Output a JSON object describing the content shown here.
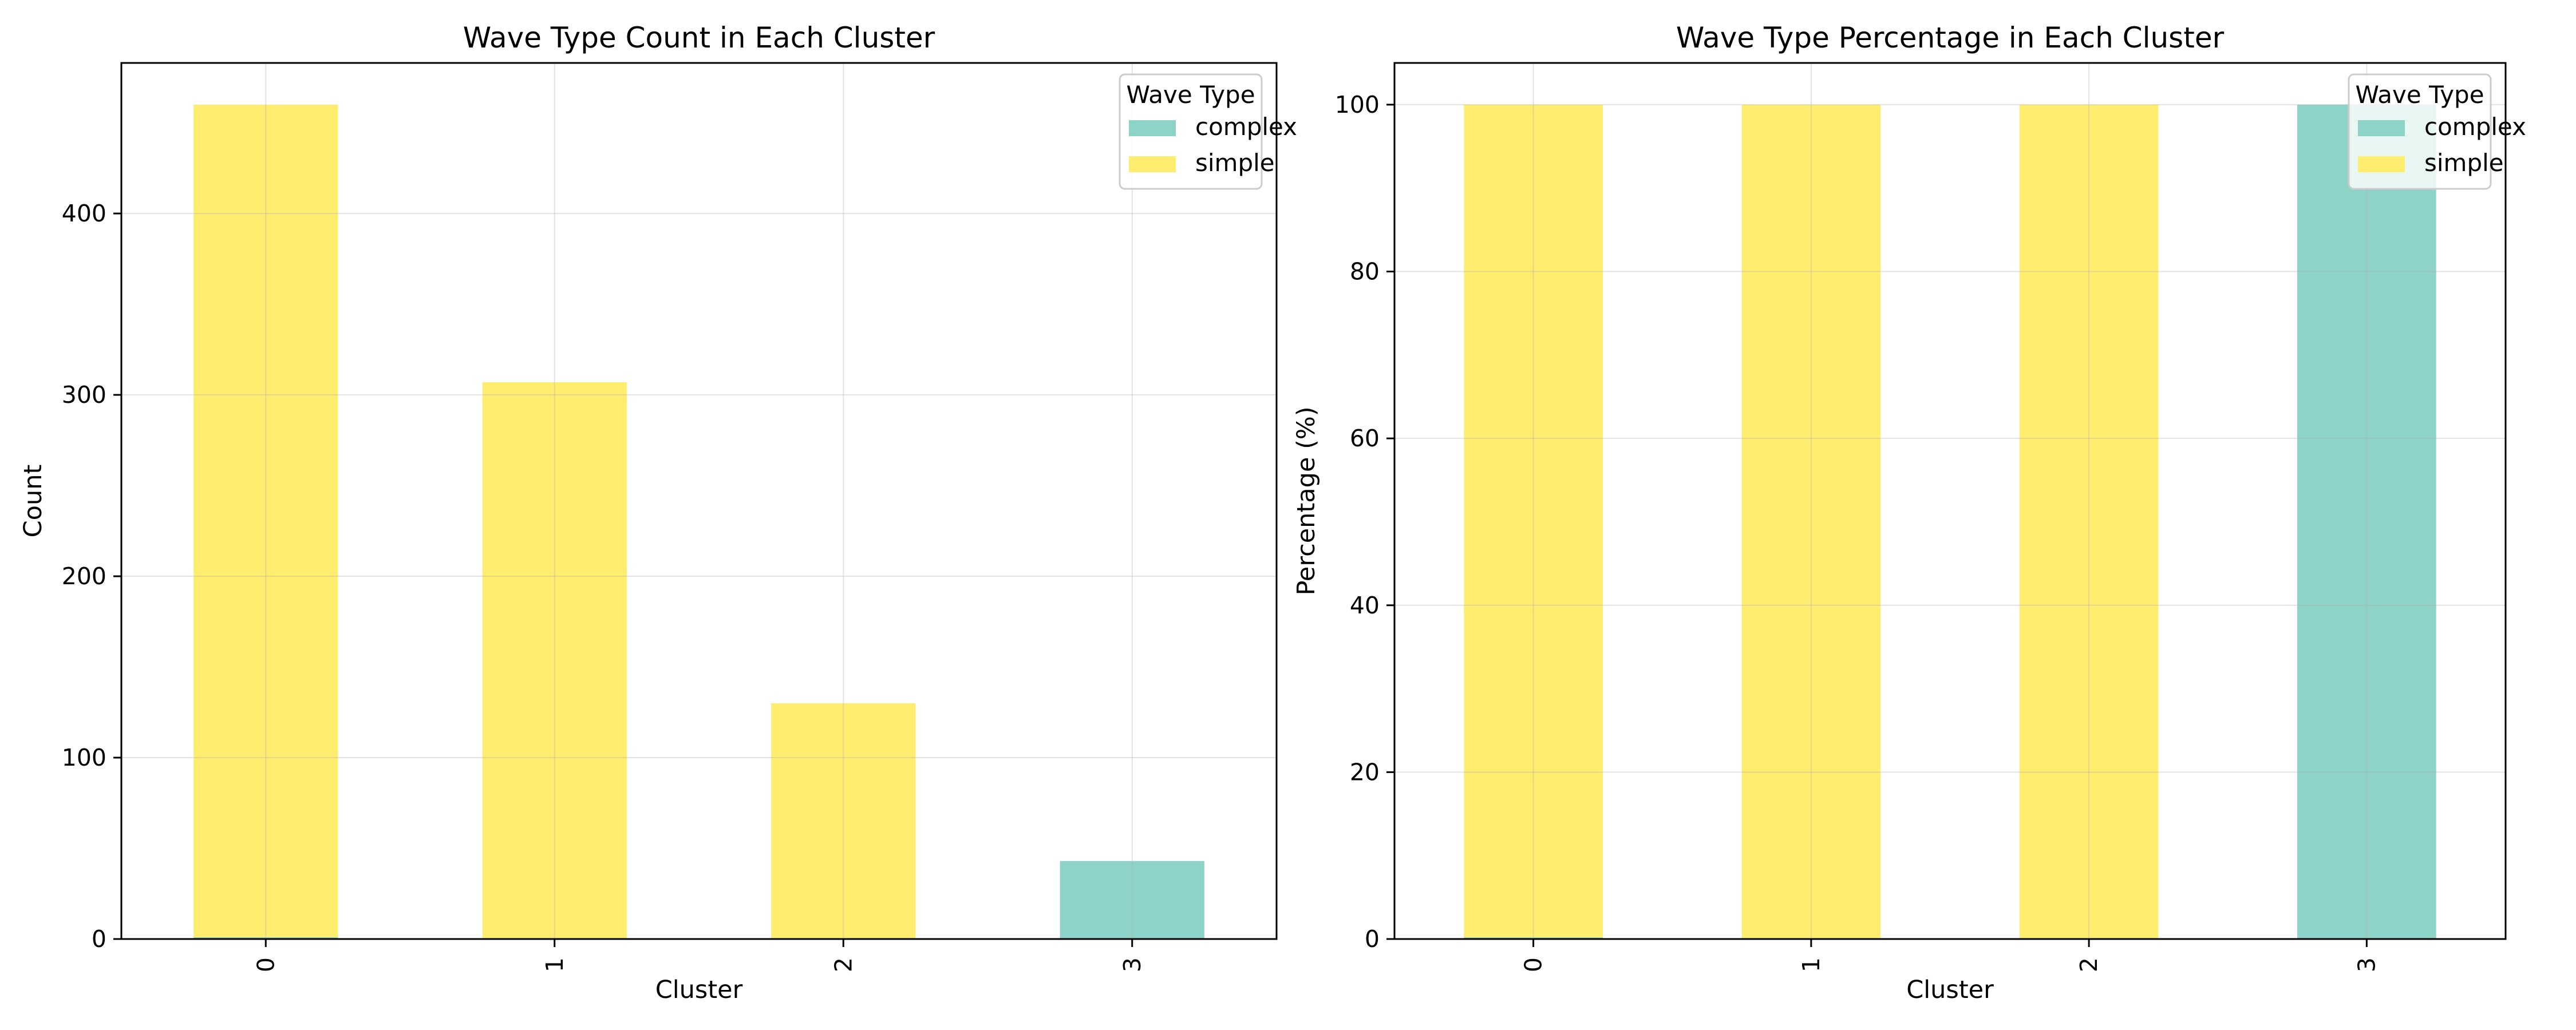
{
  "chart_data": [
    {
      "type": "bar",
      "stacked": true,
      "title": "Wave Type Count in Each Cluster",
      "xlabel": "Cluster",
      "ylabel": "Count",
      "categories": [
        "0",
        "1",
        "2",
        "3"
      ],
      "series": [
        {
          "name": "complex",
          "color": "#8dd3c7",
          "values": [
            1,
            0,
            0,
            43
          ]
        },
        {
          "name": "simple",
          "color": "#ffed6f",
          "values": [
            459,
            307,
            130,
            0
          ]
        }
      ],
      "ylim": [
        0,
        483
      ],
      "yticks": [
        0,
        100,
        200,
        300,
        400
      ],
      "grid": true,
      "legend": {
        "title": "Wave Type",
        "placement": "top-right"
      }
    },
    {
      "type": "bar",
      "stacked": true,
      "title": "Wave Type Percentage in Each Cluster",
      "xlabel": "Cluster",
      "ylabel": "Percentage (%)",
      "categories": [
        "0",
        "1",
        "2",
        "3"
      ],
      "series": [
        {
          "name": "complex",
          "color": "#8dd3c7",
          "values": [
            0.2,
            0,
            0,
            100
          ]
        },
        {
          "name": "simple",
          "color": "#ffed6f",
          "values": [
            99.8,
            100,
            100,
            0
          ]
        }
      ],
      "ylim": [
        0,
        105
      ],
      "yticks": [
        0,
        20,
        40,
        60,
        80,
        100
      ],
      "grid": true,
      "legend": {
        "title": "Wave Type",
        "placement": "top-right"
      }
    }
  ]
}
